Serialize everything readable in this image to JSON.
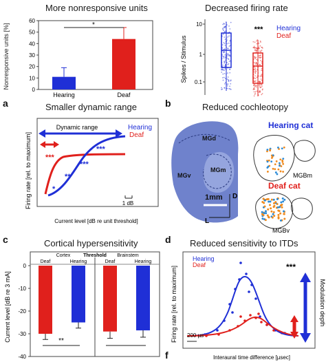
{
  "panel_letters": {
    "a": "a",
    "b": "b",
    "c": "c",
    "d": "d",
    "f": "f"
  },
  "colors": {
    "hearing": "#1f2fd6",
    "deaf": "#e0201c",
    "stain": "#5a6fc4"
  },
  "titles": {
    "top_left": "More nonresponsive units",
    "top_right": "Decreased firing rate",
    "a": "Smaller dynamic range",
    "b": "Reduced cochleotopy",
    "c": "Cortical hypersensitivity",
    "d": "Reduced sensitivity to ITDs"
  },
  "top_left": {
    "ylabel": "Nonresponsive units [%]",
    "yticks": [
      "0",
      "10",
      "20",
      "30",
      "40",
      "50",
      "60"
    ],
    "star": "*",
    "chart_data": {
      "type": "bar",
      "categories": [
        "Hearing",
        "Deaf"
      ],
      "values": [
        11,
        44
      ],
      "errors": [
        8,
        10
      ],
      "ylabel": "Nonresponsive units [%]",
      "ylim": [
        0,
        60
      ]
    }
  },
  "top_right": {
    "ylabel": "Spikes / Stimulus",
    "yticks": [
      "10",
      "1",
      "0.1"
    ],
    "stars": "***",
    "legend": [
      "Hearing",
      "Deaf"
    ]
  },
  "a": {
    "ylabel": "Firing rate [rel. to maximum]",
    "xlabel": "Current level [dB re unit threshold]",
    "dynamic_range": "Dynamic range",
    "legend": [
      "Hearing",
      "Deaf"
    ],
    "scale_bar": "1 dB",
    "stars": [
      "***",
      "***",
      "***",
      "**",
      "*"
    ]
  },
  "b": {
    "regions": [
      "MGd",
      "MGv",
      "MGm"
    ],
    "scale": "1mm",
    "dir_d": "D",
    "dir_l": "L",
    "hearing_label": "Hearing cat",
    "deaf_label": "Deaf cat",
    "mgb_hearing": "MGBm",
    "mgb_deaf": "MGBv"
  },
  "c": {
    "ylabel": "Current level [dB re 3 mA]",
    "yticks": [
      "0",
      "-10",
      "-20",
      "-30",
      "-40"
    ],
    "header": "Threshold",
    "groups": [
      "Cortex",
      "Brainstem"
    ],
    "cat_labels": [
      "Deaf",
      "Hearing",
      "Deaf",
      "Hearing"
    ],
    "star": "**",
    "chart_data": {
      "type": "bar",
      "groups": [
        "Cortex",
        "Brainstem"
      ],
      "categories": [
        "Deaf",
        "Hearing",
        "Deaf",
        "Hearing"
      ],
      "values": [
        -30,
        -25,
        -29,
        -28.5
      ],
      "errors": [
        2.5,
        2.5,
        3,
        3
      ],
      "ylim": [
        -40,
        0
      ]
    }
  },
  "d": {
    "ylabel": "Firing rate [rel. to maximum]",
    "xlabel": "Interaural time difference [µsec]",
    "legend": [
      "Hearing",
      "Deaf"
    ],
    "scale_bar": "200 µs",
    "stars": "***",
    "right_label": "Modulation depth"
  }
}
